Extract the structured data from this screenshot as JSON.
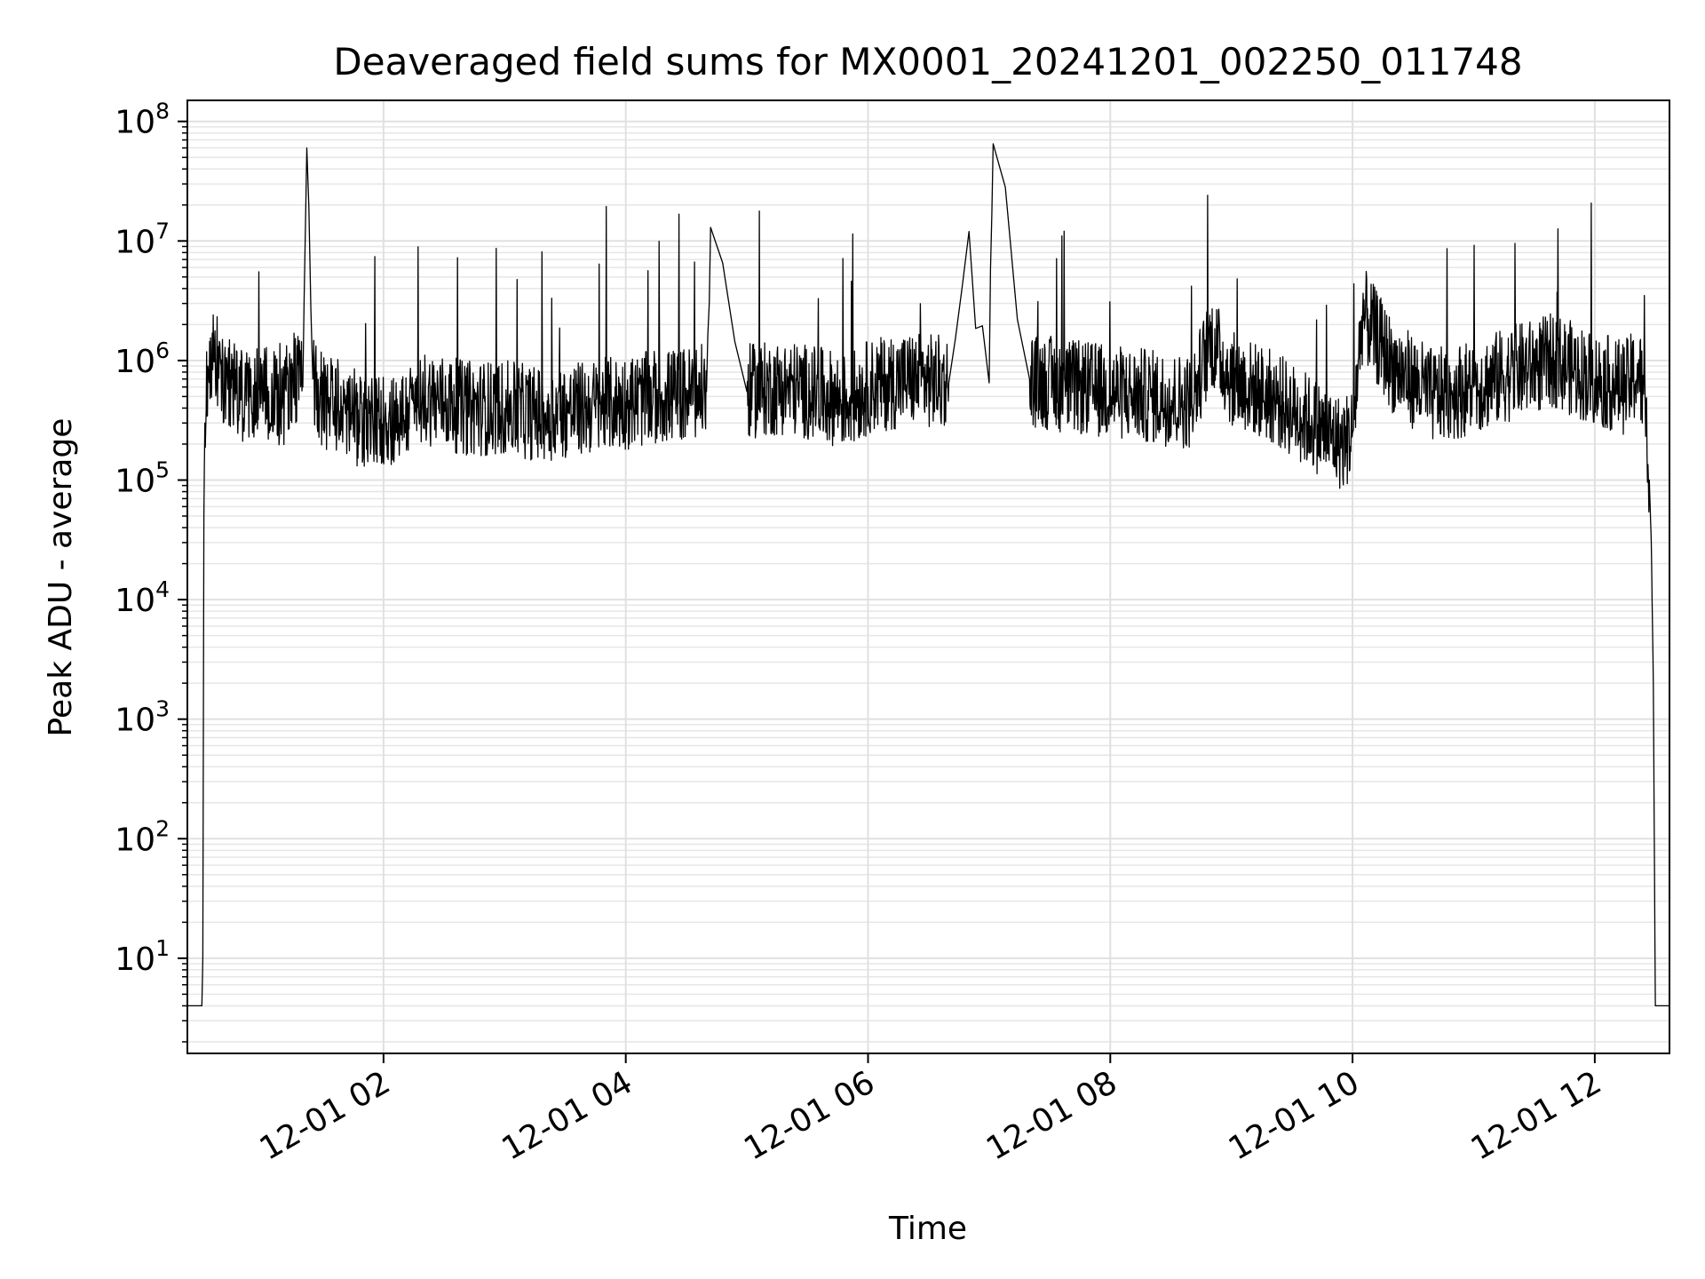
{
  "chart_data": {
    "type": "line",
    "title": "Deaveraged field sums for MX0001_20241201_002250_011748",
    "xlabel": "Time",
    "ylabel": "Peak ADU - average",
    "yscale": "log",
    "ylim": [
      1.6,
      150000000
    ],
    "xlim": [
      "2024-12-01T00:22:50",
      "2024-12-01T12:37:00"
    ],
    "grid": true,
    "legend": "none",
    "line_color": "#000000",
    "x_ticks": [
      {
        "value": "2024-12-01T02:00:00",
        "label": "12-01 02"
      },
      {
        "value": "2024-12-01T04:00:00",
        "label": "12-01 04"
      },
      {
        "value": "2024-12-01T06:00:00",
        "label": "12-01 06"
      },
      {
        "value": "2024-12-01T08:00:00",
        "label": "12-01 08"
      },
      {
        "value": "2024-12-01T10:00:00",
        "label": "12-01 10"
      },
      {
        "value": "2024-12-01T12:00:00",
        "label": "12-01 12"
      }
    ],
    "y_ticks": [
      {
        "value": 10,
        "base": "10",
        "exp": "1"
      },
      {
        "value": 100,
        "base": "10",
        "exp": "2"
      },
      {
        "value": 1000,
        "base": "10",
        "exp": "3"
      },
      {
        "value": 10000,
        "base": "10",
        "exp": "4"
      },
      {
        "value": 100000,
        "base": "10",
        "exp": "5"
      },
      {
        "value": 1000000,
        "base": "10",
        "exp": "6"
      },
      {
        "value": 10000000,
        "base": "10",
        "exp": "7"
      },
      {
        "value": 100000000,
        "base": "10",
        "exp": "8"
      }
    ],
    "series": [
      {
        "x": [
          "2024-12-01T00:23:00",
          "2024-12-01T00:30:00",
          "2024-12-01T00:30:30",
          "2024-12-01T00:31:00",
          "2024-12-01T00:31:30",
          "2024-12-01T00:33:00",
          "2024-12-01T00:35:00",
          "2024-12-01T00:38:00",
          "2024-12-01T00:40:00",
          "2024-12-01T00:45:00",
          "2024-12-01T00:50:00",
          "2024-12-01T01:00:00",
          "2024-12-01T01:10:00",
          "2024-12-01T01:15:00",
          "2024-12-01T01:20:00",
          "2024-12-01T01:22:00",
          "2024-12-01T01:25:00",
          "2024-12-01T01:30:00",
          "2024-12-01T01:40:00",
          "2024-12-01T01:50:00",
          "2024-12-01T02:10:00",
          "2024-12-01T02:20:00",
          "2024-12-01T02:30:00",
          "2024-12-01T02:40:00",
          "2024-12-01T03:00:00",
          "2024-12-01T03:20:00",
          "2024-12-01T03:40:00",
          "2024-12-01T04:00:00",
          "2024-12-01T04:20:00",
          "2024-12-01T04:40:00",
          "2024-12-01T04:42:00",
          "2024-12-01T05:00:00",
          "2024-12-01T05:20:00",
          "2024-12-01T05:40:00",
          "2024-12-01T05:50:00",
          "2024-12-01T06:00:00",
          "2024-12-01T06:20:00",
          "2024-12-01T06:40:00",
          "2024-12-01T06:50:00",
          "2024-12-01T07:00:00",
          "2024-12-01T07:02:00",
          "2024-12-01T07:20:00",
          "2024-12-01T07:40:00",
          "2024-12-01T08:00:00",
          "2024-12-01T08:20:00",
          "2024-12-01T08:40:00",
          "2024-12-01T08:50:00",
          "2024-12-01T09:00:00",
          "2024-12-01T09:20:00",
          "2024-12-01T09:40:00",
          "2024-12-01T09:55:00",
          "2024-12-01T10:00:00",
          "2024-12-01T10:05:00",
          "2024-12-01T10:20:00",
          "2024-12-01T10:40:00",
          "2024-12-01T11:00:00",
          "2024-12-01T11:20:00",
          "2024-12-01T11:40:00",
          "2024-12-01T12:00:00",
          "2024-12-01T12:15:00",
          "2024-12-01T12:22:00",
          "2024-12-01T12:25:00",
          "2024-12-01T12:27:00",
          "2024-12-01T12:28:00",
          "2024-12-01T12:29:00",
          "2024-12-01T12:30:00",
          "2024-12-01T12:37:00"
        ],
        "values": [
          4,
          4,
          10,
          50000,
          300000,
          900000,
          1200000,
          900000,
          600000,
          700000,
          500000,
          600000,
          450000,
          800000,
          600000,
          60000000,
          700000,
          450000,
          400000,
          300000,
          350000,
          500000,
          450000,
          400000,
          400000,
          350000,
          400000,
          450000,
          500000,
          550000,
          13000000,
          550000,
          600000,
          500000,
          450000,
          600000,
          700000,
          650000,
          12000000,
          650000,
          65000000,
          700000,
          600000,
          550000,
          500000,
          450000,
          1500000,
          700000,
          500000,
          300000,
          200000,
          250000,
          2500000,
          900000,
          500000,
          600000,
          800000,
          1000000,
          700000,
          600000,
          800000,
          400000,
          100000,
          30000,
          2000,
          4,
          4
        ]
      }
    ]
  }
}
